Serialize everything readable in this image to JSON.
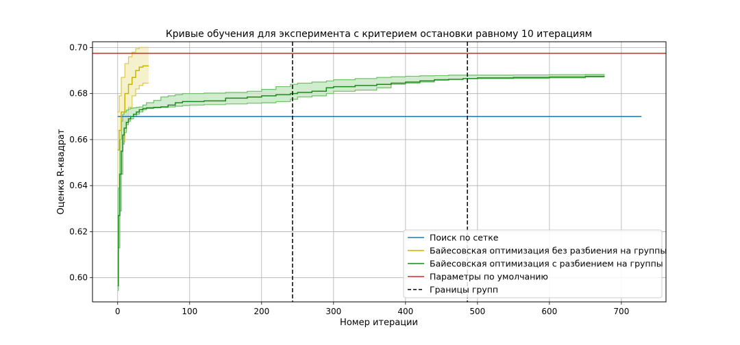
{
  "chart_data": {
    "type": "line",
    "title": "Кривые обучения для эксперимента с критерием остановки равному 10 итерациям",
    "xlabel": "Номер итерации",
    "ylabel": "Оценка R-квадрат",
    "xlim": [
      -35,
      762
    ],
    "ylim": [
      0.5895,
      0.7025
    ],
    "xticks": [
      0,
      100,
      200,
      300,
      400,
      500,
      600,
      700
    ],
    "yticks": [
      0.6,
      0.62,
      0.64,
      0.66,
      0.68,
      0.7
    ],
    "grid": true,
    "legend_position": "lower-right",
    "series": [
      {
        "name": "Поиск по сетке",
        "color": "#1f77b4",
        "style": "solid",
        "x": [
          0,
          728
        ],
        "y": [
          0.67,
          0.67
        ]
      },
      {
        "name": "Байесовская оптимизация без разбиения на группы",
        "color": "#c8b400",
        "style": "solid",
        "x": [
          0,
          2,
          5,
          10,
          15,
          20,
          25,
          30,
          35,
          43
        ],
        "y": [
          0.6555,
          0.664,
          0.672,
          0.68,
          0.684,
          0.687,
          0.69,
          0.6915,
          0.692,
          0.692
        ],
        "lower": [
          0.638,
          0.645,
          0.659,
          0.668,
          0.674,
          0.679,
          0.682,
          0.6835,
          0.6845,
          0.6845
        ],
        "upper": [
          0.672,
          0.679,
          0.687,
          0.693,
          0.696,
          0.698,
          0.6995,
          0.7,
          0.7,
          0.7
        ]
      },
      {
        "name": "Байесовская оптимизация с разбиением на группы",
        "color": "#1a8a1a",
        "fill": "#c6e6c3",
        "style": "solid",
        "x": [
          0,
          1,
          3,
          5,
          7,
          9,
          12,
          15,
          18,
          22,
          26,
          30,
          35,
          40,
          50,
          60,
          70,
          80,
          90,
          100,
          120,
          150,
          180,
          200,
          220,
          240,
          250,
          270,
          290,
          300,
          330,
          360,
          380,
          400,
          420,
          440,
          460,
          480,
          500,
          550,
          600,
          650,
          676
        ],
        "y": [
          0.5965,
          0.627,
          0.645,
          0.655,
          0.662,
          0.665,
          0.6675,
          0.669,
          0.67,
          0.671,
          0.672,
          0.673,
          0.6735,
          0.6738,
          0.674,
          0.6742,
          0.675,
          0.676,
          0.6765,
          0.6765,
          0.6768,
          0.678,
          0.6785,
          0.679,
          0.6795,
          0.68,
          0.6805,
          0.681,
          0.6825,
          0.683,
          0.6835,
          0.684,
          0.6845,
          0.685,
          0.6855,
          0.686,
          0.6862,
          0.6865,
          0.6868,
          0.687,
          0.6872,
          0.6875,
          0.6878
        ],
        "lower": [
          0.5945,
          0.613,
          0.629,
          0.645,
          0.658,
          0.663,
          0.6665,
          0.668,
          0.669,
          0.67,
          0.671,
          0.672,
          0.673,
          0.6735,
          0.6738,
          0.674,
          0.6742,
          0.6745,
          0.6748,
          0.675,
          0.6752,
          0.6755,
          0.6758,
          0.676,
          0.6765,
          0.6775,
          0.6785,
          0.679,
          0.68,
          0.681,
          0.6815,
          0.6825,
          0.684,
          0.6845,
          0.685,
          0.6858,
          0.6862,
          0.6865,
          0.6865,
          0.6866,
          0.6868,
          0.6872,
          0.6874
        ],
        "upper": [
          0.5985,
          0.639,
          0.66,
          0.668,
          0.671,
          0.672,
          0.6728,
          0.6733,
          0.6736,
          0.6738,
          0.674,
          0.6742,
          0.675,
          0.676,
          0.677,
          0.6785,
          0.679,
          0.6795,
          0.68,
          0.68,
          0.6802,
          0.6805,
          0.681,
          0.6818,
          0.683,
          0.684,
          0.6845,
          0.685,
          0.6855,
          0.686,
          0.6865,
          0.687,
          0.6873,
          0.6875,
          0.6877,
          0.6878,
          0.688,
          0.688,
          0.688,
          0.6881,
          0.6882,
          0.6883,
          0.6885
        ]
      },
      {
        "name": "Параметры по умолчанию",
        "color": "#d62728",
        "style": "solid",
        "y_const": 0.6975
      },
      {
        "name": "Границы групп",
        "color": "#000000",
        "style": "dashed",
        "x_const": [
          243,
          486
        ]
      }
    ]
  }
}
